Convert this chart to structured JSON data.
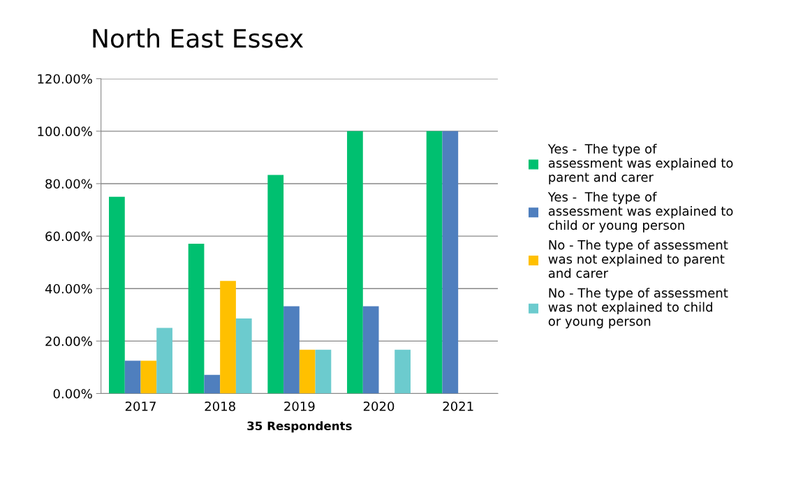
{
  "chart_data": {
    "type": "bar",
    "title": "North East Essex",
    "xlabel": "35 Respondents",
    "categories": [
      "2017",
      "2018",
      "2019",
      "2020",
      "2021"
    ],
    "series": [
      {
        "name": "Yes -  The type of assessment was explained to parent and carer",
        "color": "#00c070",
        "values": [
          75.0,
          57.1,
          83.3,
          100.0,
          100.0
        ]
      },
      {
        "name": "Yes -  The type of assessment was explained to child or young person",
        "color": "#4f7fbe",
        "values": [
          12.5,
          7.1,
          33.3,
          33.3,
          100.0
        ]
      },
      {
        "name": "No - The type of assessment was not explained to parent and carer",
        "color": "#ffc000",
        "values": [
          12.5,
          42.9,
          16.7,
          0,
          0
        ]
      },
      {
        "name": "No - The type of assessment was not explained to child or young person",
        "color": "#6ccbce",
        "values": [
          25.0,
          28.6,
          16.7,
          16.7,
          0
        ]
      }
    ],
    "ylim": [
      0,
      120
    ],
    "yticks": [
      {
        "value": 0,
        "label": "0.00%"
      },
      {
        "value": 20,
        "label": "20.00%"
      },
      {
        "value": 40,
        "label": "40.00%"
      },
      {
        "value": 60,
        "label": "60.00%"
      },
      {
        "value": 80,
        "label": "80.00%"
      },
      {
        "value": 100,
        "label": "100.00%"
      },
      {
        "value": 120,
        "label": "120.00%"
      }
    ],
    "grid": "y",
    "legend": "right"
  }
}
